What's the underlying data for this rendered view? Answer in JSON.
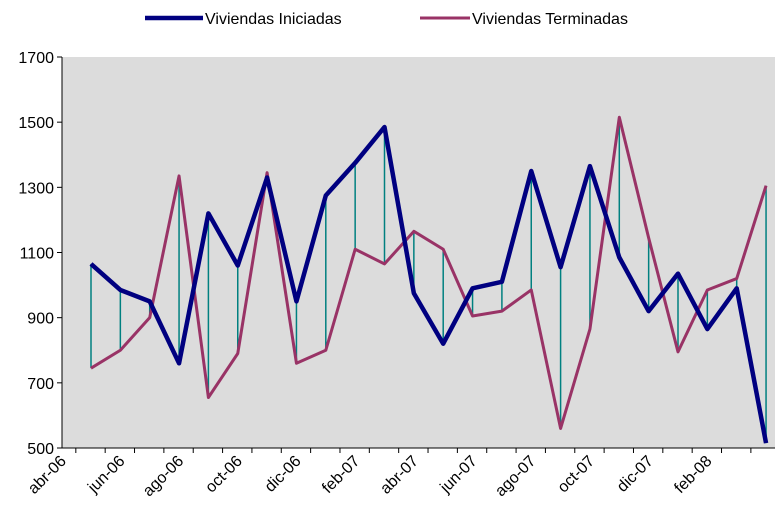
{
  "chart_data": {
    "type": "line",
    "categories": [
      "abr-06",
      null,
      "jun-06",
      null,
      "ago-06",
      null,
      "oct-06",
      null,
      "dic-06",
      null,
      "feb-07",
      null,
      "abr-07",
      null,
      "jun-07",
      null,
      "ago-07",
      null,
      "oct-07",
      null,
      "dic-07",
      null,
      "feb-08",
      null
    ],
    "series": [
      {
        "name": "Viviendas Iniciadas",
        "color": "#000080",
        "values": [
          1065,
          985,
          950,
          760,
          1220,
          1060,
          1330,
          950,
          1275,
          1375,
          1485,
          975,
          820,
          990,
          1010,
          1350,
          1055,
          1365,
          1085,
          920,
          1035,
          865,
          990,
          515
        ]
      },
      {
        "name": "Viviendas Terminadas",
        "color": "#993366",
        "values": [
          745,
          800,
          900,
          1335,
          655,
          790,
          1345,
          760,
          800,
          1110,
          1065,
          1165,
          1110,
          905,
          920,
          985,
          560,
          865,
          1515,
          1145,
          795,
          985,
          1020,
          1305
        ]
      }
    ],
    "drop_line_color": "#008080",
    "ylim": [
      500,
      1700
    ],
    "yticks": [
      500,
      700,
      900,
      1100,
      1300,
      1500,
      1700
    ],
    "plot_background": "#dcdcdc"
  }
}
